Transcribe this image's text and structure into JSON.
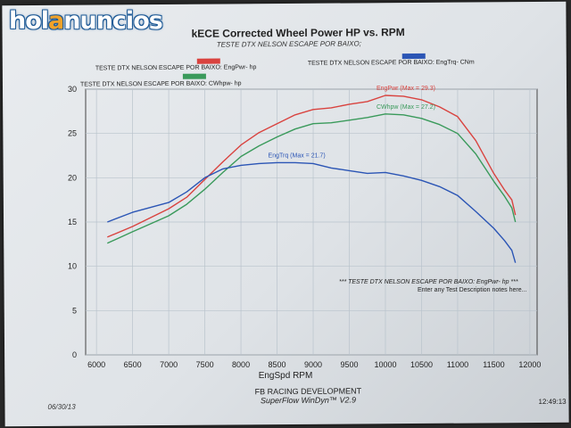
{
  "logo": {
    "part1": "hol",
    "part2": "a",
    "part3": "nuncios"
  },
  "header": {
    "title": "kECE Corrected Wheel Power HP vs. RPM",
    "subtitle": "TESTE DTX NELSON ESCAPE POR BAIXO;"
  },
  "legend": [
    {
      "label": "TESTE DTX NELSON ESCAPE POR BAIXO: EngPwr- hp",
      "color": "#d9433f"
    },
    {
      "label": "TESTE DTX NELSON ESCAPE POR BAIXO: EngTrq- CNm",
      "color": "#2b55b5"
    },
    {
      "label": "TESTE DTX NELSON ESCAPE POR BAIXO: CWhpw- hp",
      "color": "#3a9a5b"
    }
  ],
  "note": {
    "line1": "*** TESTE DTX NELSON ESCAPE POR BAIXO: EngPwr- hp ***",
    "line2": "Enter any Test Description notes here..."
  },
  "footer": {
    "date": "06/30/13",
    "company": "FB RACING DEVELOPMENT",
    "software": "SuperFlow WinDyn™ V2.9",
    "time": "12:49:13"
  },
  "chart_data": {
    "type": "line",
    "xlabel": "EngSpd  RPM",
    "ylabel": "",
    "xlim": [
      5850,
      12100
    ],
    "ylim": [
      0,
      30
    ],
    "xticks": [
      6000,
      6500,
      7000,
      7500,
      8000,
      8500,
      9000,
      9500,
      10000,
      10500,
      11000,
      11500,
      12000
    ],
    "yticks": [
      0,
      5,
      10,
      15,
      20,
      25,
      30
    ],
    "grid": true,
    "series": [
      {
        "name": "EngPwr",
        "annotation": "EngPwr (Max = 29.3)",
        "color": "#d9433f",
        "x": [
          6150,
          6500,
          7000,
          7250,
          7500,
          7750,
          8000,
          8250,
          8500,
          8750,
          9000,
          9250,
          9500,
          9750,
          10000,
          10250,
          10500,
          10750,
          11000,
          11250,
          11500,
          11650,
          11750,
          11800
        ],
        "y": [
          13.3,
          14.5,
          16.5,
          17.8,
          19.8,
          21.8,
          23.7,
          25.1,
          26.1,
          27.1,
          27.7,
          27.9,
          28.3,
          28.6,
          29.3,
          29.2,
          28.8,
          28.0,
          26.9,
          24.2,
          20.5,
          18.6,
          17.5,
          15.8
        ]
      },
      {
        "name": "CWhpw",
        "annotation": "CWhpw (Max = 27.2)",
        "color": "#3a9a5b",
        "x": [
          6150,
          6500,
          7000,
          7250,
          7500,
          7750,
          8000,
          8250,
          8500,
          8750,
          9000,
          9250,
          9500,
          9750,
          10000,
          10250,
          10500,
          10750,
          11000,
          11250,
          11500,
          11650,
          11750,
          11800
        ],
        "y": [
          12.6,
          13.9,
          15.7,
          17.0,
          18.7,
          20.6,
          22.4,
          23.6,
          24.6,
          25.5,
          26.1,
          26.2,
          26.5,
          26.8,
          27.2,
          27.1,
          26.7,
          26.0,
          25.0,
          22.7,
          19.6,
          17.9,
          16.6,
          15.0
        ]
      },
      {
        "name": "EngTrq",
        "annotation": "EngTrq (Max = 21.7)",
        "color": "#2b55b5",
        "x": [
          6150,
          6500,
          7000,
          7250,
          7500,
          7750,
          8000,
          8250,
          8500,
          8750,
          9000,
          9250,
          9500,
          9750,
          10000,
          10250,
          10500,
          10750,
          11000,
          11250,
          11500,
          11650,
          11750,
          11800
        ],
        "y": [
          15.0,
          16.1,
          17.2,
          18.4,
          20.0,
          21.0,
          21.4,
          21.6,
          21.7,
          21.7,
          21.6,
          21.1,
          20.8,
          20.5,
          20.6,
          20.2,
          19.7,
          19.0,
          18.0,
          16.2,
          14.3,
          12.9,
          11.8,
          10.4
        ]
      }
    ]
  }
}
